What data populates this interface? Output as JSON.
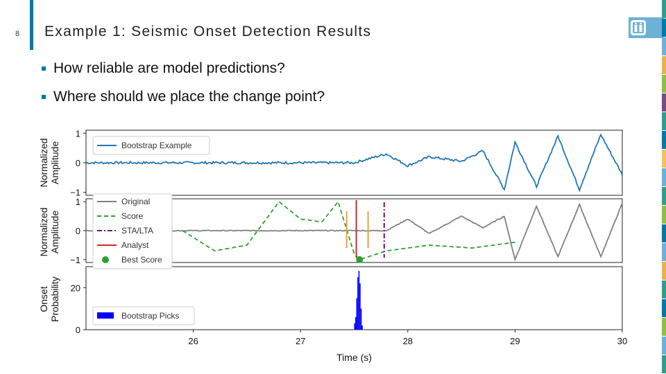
{
  "slide": {
    "number": "8",
    "title": "Example 1: Seismic Onset Detection Results",
    "bullets": [
      "How reliable are model predictions?",
      "Where should we place the change point?"
    ]
  },
  "colors": {
    "accent": "#0078a8",
    "bootstrap": "#1f77b4",
    "original": "#808080",
    "score": "#2ca02c",
    "stalta": "#800080",
    "analyst": "#d62728",
    "orange": "#f0a030",
    "picks": "#0000ff",
    "stripes": [
      "#2e9e8e",
      "#0078a8",
      "#6cb2d8",
      "#e6b34d",
      "#90c040",
      "#7a4a8a",
      "#2e9e8e",
      "#0078a8",
      "#f2c35a",
      "#6cb2d8",
      "#2e9e8e",
      "#90c040",
      "#0078a8",
      "#6cb2d8",
      "#e6b34d",
      "#2e9e8e",
      "#0078a8",
      "#90c040",
      "#6cb2d8",
      "#2e9e8e"
    ]
  },
  "chart_data": [
    {
      "type": "line",
      "panel": "top",
      "ylabel": "Normalized Amplitude",
      "ylim": [
        -1.1,
        1.1
      ],
      "yticks": [
        "1",
        "0",
        "−1"
      ],
      "legend": {
        "position": "top-left",
        "entries": [
          "Bootstrap Example"
        ]
      },
      "series": [
        {
          "name": "Bootstrap Example",
          "x": [
            25.0,
            27.0,
            27.5,
            27.8,
            28.0,
            28.2,
            28.5,
            28.7,
            28.9,
            29.0,
            29.2,
            29.4,
            29.6,
            29.8,
            30.0
          ],
          "y": [
            0.0,
            0.0,
            0.0,
            0.3,
            -0.1,
            0.2,
            0.05,
            0.4,
            -0.9,
            0.7,
            -0.8,
            0.9,
            -0.9,
            0.95,
            -0.4
          ]
        }
      ]
    },
    {
      "type": "line",
      "panel": "middle",
      "ylabel": "Normalized Amplitude",
      "ylim": [
        -1.1,
        1.1
      ],
      "yticks": [
        "1",
        "0",
        "−1"
      ],
      "legend": {
        "position": "top-left",
        "entries": [
          "Original",
          "Score",
          "STA/LTA",
          "Analyst",
          "Best Score"
        ]
      },
      "series": [
        {
          "name": "Original",
          "x": [
            25.0,
            27.8,
            28.0,
            28.2,
            28.5,
            28.7,
            28.9,
            29.0,
            29.2,
            29.4,
            29.6,
            29.8,
            30.0
          ],
          "y": [
            0.0,
            0.0,
            0.4,
            -0.1,
            0.5,
            0.1,
            0.5,
            -1.0,
            0.85,
            -0.9,
            0.9,
            -0.9,
            0.95
          ]
        },
        {
          "name": "Score",
          "x": [
            25.9,
            26.2,
            26.5,
            26.8,
            27.0,
            27.2,
            27.35,
            27.5,
            27.55,
            27.8,
            28.2,
            28.6,
            29.0
          ],
          "y": [
            0.0,
            -0.7,
            -0.5,
            1.0,
            0.4,
            0.3,
            1.0,
            -0.8,
            -1.0,
            -0.7,
            -0.5,
            -0.6,
            -0.4
          ]
        }
      ],
      "vlines": [
        {
          "name": "STA/LTA",
          "x": 27.78
        },
        {
          "name": "Analyst",
          "x": 27.52
        },
        {
          "name": "Orange bound left",
          "x": 27.43
        },
        {
          "name": "Orange bound right",
          "x": 27.63
        }
      ],
      "best_score": {
        "x": 27.55,
        "y": -1.0
      }
    },
    {
      "type": "bar",
      "panel": "bottom",
      "ylabel": "Onset Probability",
      "xlabel": "Time (s)",
      "xlim": [
        25.0,
        30.0
      ],
      "ylim": [
        0,
        30
      ],
      "xticks": [
        "26",
        "27",
        "28",
        "29",
        "30"
      ],
      "yticks": [
        "20",
        "0"
      ],
      "legend": {
        "position": "left",
        "entries": [
          "Bootstrap Picks"
        ]
      },
      "bins": [
        27.5,
        27.51,
        27.52,
        27.53,
        27.54,
        27.55,
        27.56,
        27.57
      ],
      "values": [
        3,
        6,
        15,
        25,
        28,
        22,
        10,
        2
      ]
    }
  ]
}
